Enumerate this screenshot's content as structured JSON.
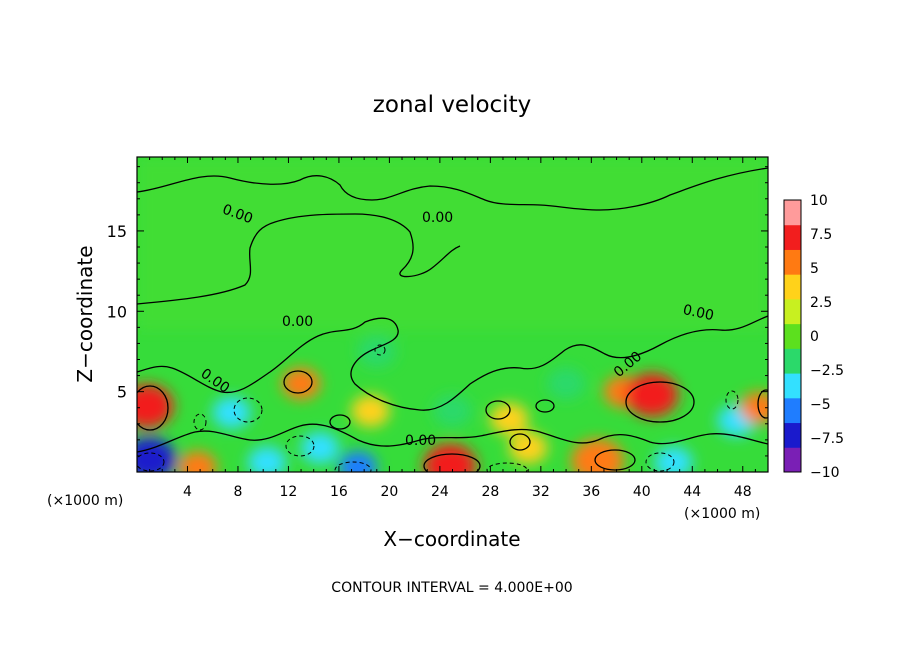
{
  "chart_data": {
    "type": "heatmap",
    "title": "zonal velocity",
    "xlabel": "X−coordinate",
    "ylabel": "Z−coordinate",
    "footer": "CONTOUR INTERVAL = 4.000E+00",
    "x_unit_left": "(×1000 m)",
    "x_unit_right": "(×1000 m)",
    "xlim": [
      0,
      50
    ],
    "ylim": [
      0,
      19.6
    ],
    "x_ticks": [
      4,
      8,
      12,
      16,
      20,
      24,
      28,
      32,
      36,
      40,
      44,
      48
    ],
    "x_tick_labels": [
      "4",
      "8",
      "12",
      "16",
      "20",
      "24",
      "28",
      "32",
      "36",
      "40",
      "44",
      "48"
    ],
    "y_ticks": [
      5,
      10,
      15
    ],
    "y_tick_labels": [
      "5",
      "10",
      "15"
    ],
    "colorbar": {
      "min": -10,
      "max": 10,
      "ticks": [
        10,
        7.5,
        5,
        2.5,
        0,
        -2.5,
        -5,
        -7.5,
        -10
      ],
      "tick_labels": [
        "10",
        "7.5",
        "5",
        "2.5",
        "0",
        "−2.5",
        "−5",
        "−7.5",
        "−10"
      ],
      "colors": [
        "#7a1fb5",
        "#1a1acc",
        "#1f7dff",
        "#33e0ff",
        "#2bd96a",
        "#5ce01e",
        "#c8f020",
        "#ffd21a",
        "#ff7a12",
        "#f21e1e",
        "#ff9b9b"
      ]
    },
    "contour_labels": [
      "0.00",
      "0.00",
      "0.00",
      "0.00",
      "0.00",
      "0.00",
      "0.00"
    ],
    "features": [
      {
        "x": 0.8,
        "z": 4.1,
        "value": 7.5
      },
      {
        "x": 1.0,
        "z": 0.8,
        "value": -7.5
      },
      {
        "x": 4.8,
        "z": 0.3,
        "value": 6.0
      },
      {
        "x": 7.5,
        "z": 3.7,
        "value": -4.5
      },
      {
        "x": 10.3,
        "z": 0.6,
        "value": -5.0
      },
      {
        "x": 13.0,
        "z": 5.5,
        "value": 6.0
      },
      {
        "x": 14.5,
        "z": 1.5,
        "value": -4.0
      },
      {
        "x": 17.5,
        "z": 0.3,
        "value": -6.0
      },
      {
        "x": 18.5,
        "z": 3.8,
        "value": 4.0
      },
      {
        "x": 24.8,
        "z": 0.4,
        "value": 7.5
      },
      {
        "x": 29.5,
        "z": 3.3,
        "value": 4.0
      },
      {
        "x": 31.0,
        "z": 1.5,
        "value": 4.5
      },
      {
        "x": 36.5,
        "z": 0.7,
        "value": 6.5
      },
      {
        "x": 38.5,
        "z": 5.0,
        "value": 5.0
      },
      {
        "x": 40.8,
        "z": 4.8,
        "value": 8.0
      },
      {
        "x": 42.5,
        "z": 0.6,
        "value": -4.5
      },
      {
        "x": 47.5,
        "z": 3.2,
        "value": -4.0
      },
      {
        "x": 49.3,
        "z": 4.0,
        "value": 5.0
      },
      {
        "x": 19.0,
        "z": 7.5,
        "value": -3.0
      },
      {
        "x": 25.0,
        "z": 3.8,
        "value": -3.0
      },
      {
        "x": 34.0,
        "z": 5.5,
        "value": -3.0
      }
    ],
    "grid": false,
    "legend": "colorbar right"
  }
}
